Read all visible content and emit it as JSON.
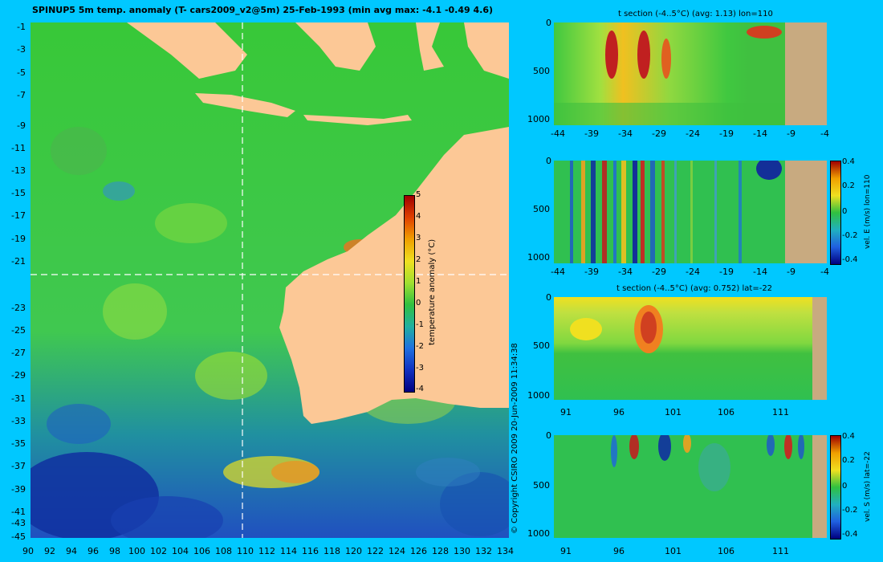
{
  "main_title": "SPINUP5 5m temp. anomaly (T- cars2009_v2@5m) 25-Feb-1993 (min avg max: -4.1 -0.49 4.6)",
  "map": {
    "lat_ticks": [
      "-1",
      "-3",
      "-5",
      "-7",
      "-9",
      "-11",
      "-13",
      "-15",
      "-17",
      "-19",
      "-21",
      "-23",
      "-25",
      "-27",
      "-29",
      "-31",
      "-33",
      "-35",
      "-37",
      "-39",
      "-41",
      "-43",
      "-45"
    ],
    "lon_ticks": [
      "90",
      "92",
      "94",
      "96",
      "98",
      "100",
      "102",
      "104",
      "106",
      "108",
      "110",
      "112",
      "114",
      "116",
      "118",
      "120",
      "122",
      "124",
      "126",
      "128",
      "130",
      "132",
      "134"
    ],
    "section_lon": 110,
    "section_lat": -22,
    "colors": {
      "land": "#fcc896",
      "ocean_mid": "#30c040",
      "ocean_cold": "#1030c0",
      "ocean_warm": "#f0d020"
    }
  },
  "colorbar": {
    "label": "temperature anomaly (°C)",
    "ticks": [
      "5",
      "4",
      "3",
      "2",
      "1",
      "0",
      "-1",
      "-2",
      "-3",
      "-4"
    ]
  },
  "copyright": "© Copyright CSIRO 2009  20-Jun-2009 11:34:38",
  "panels": [
    {
      "title": "t section (-4..5°C) (avg: 1.13) lon=110",
      "y_ticks": [
        "0",
        "500",
        "1000"
      ],
      "x_ticks": [
        "-44",
        "-39",
        "-34",
        "-29",
        "-24",
        "-19",
        "-14",
        "-9",
        "-4"
      ]
    },
    {
      "title": "",
      "y_ticks": [
        "0",
        "500",
        "1000"
      ],
      "x_ticks": [
        "-44",
        "-39",
        "-34",
        "-29",
        "-24",
        "-19",
        "-14",
        "-9",
        "-4"
      ],
      "cbar_label": "vel. E (m/s) lon=110",
      "cbar_ticks": [
        "0.4",
        "0.2",
        "0",
        "-0.2",
        "-0.4"
      ]
    },
    {
      "title": "t section (-4..5°C) (avg: 0.752) lat=-22",
      "y_ticks": [
        "0",
        "500",
        "1000"
      ],
      "x_ticks": [
        "91",
        "96",
        "101",
        "106",
        "111"
      ]
    },
    {
      "title": "",
      "y_ticks": [
        "0",
        "500",
        "1000"
      ],
      "x_ticks": [
        "91",
        "96",
        "101",
        "106",
        "111"
      ],
      "cbar_label": "vel. S (m/s) lat=-22",
      "cbar_ticks": [
        "0.4",
        "0.2",
        "0",
        "-0.2",
        "-0.4"
      ]
    }
  ]
}
